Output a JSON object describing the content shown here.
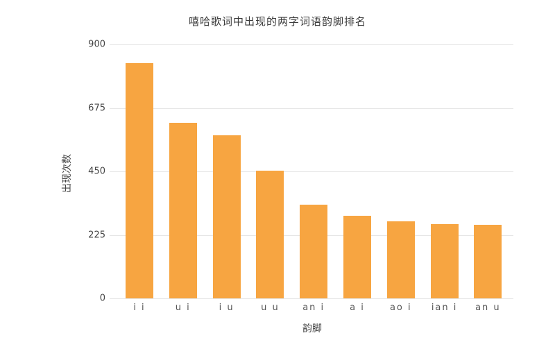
{
  "chart_data": {
    "type": "bar",
    "title": "嘻哈歌词中出现的两字词语韵脚排名",
    "xlabel": "韵脚",
    "ylabel": "出现次数",
    "categories": [
      "i i",
      "u i",
      "i u",
      "u u",
      "an i",
      "a i",
      "ao i",
      "ian i",
      "an u"
    ],
    "values": [
      834,
      622,
      578,
      452,
      332,
      293,
      273,
      263,
      261
    ],
    "ylim": [
      0,
      900
    ],
    "yticks": [
      "0",
      "225",
      "450",
      "675",
      "900"
    ],
    "grid": true,
    "legend": null,
    "bar_color": "#f7a541"
  }
}
